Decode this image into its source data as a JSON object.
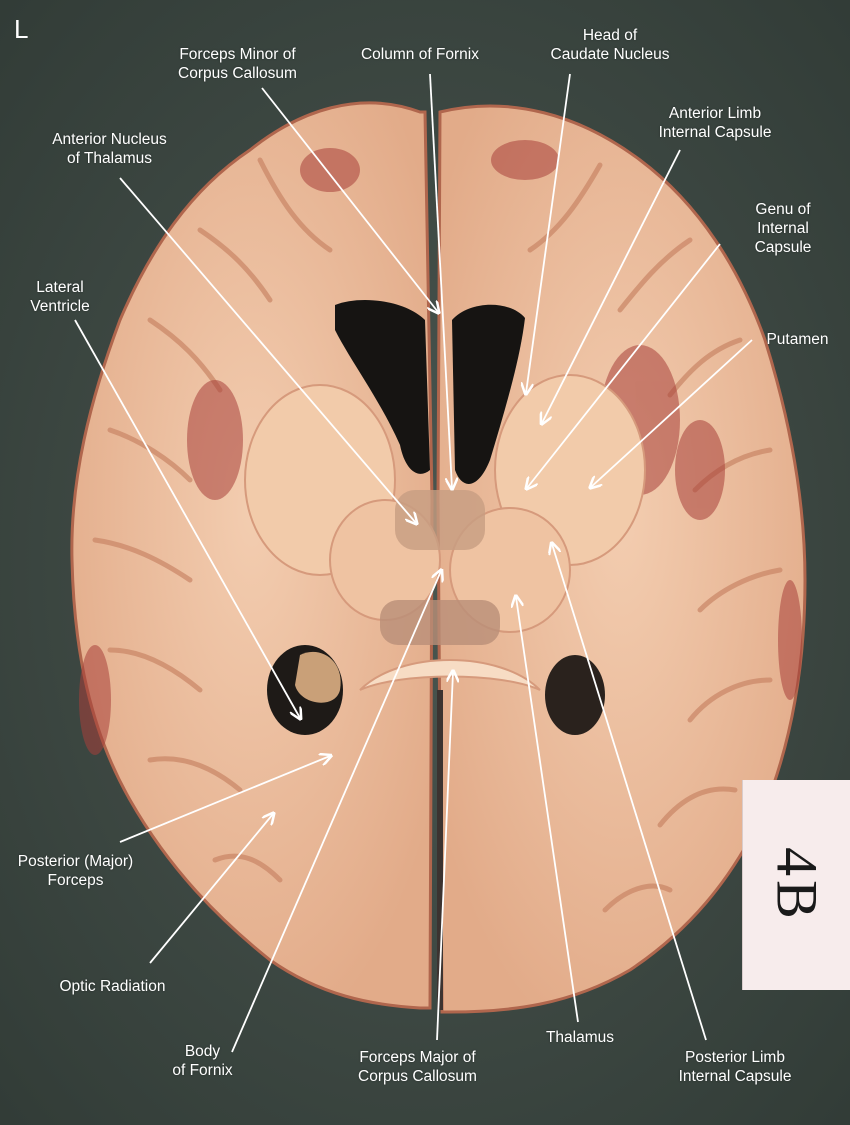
{
  "orientation_marker": "L",
  "specimen_card": "4B",
  "labels": {
    "forceps_minor": [
      "Forceps Minor of",
      "Corpus Callosum"
    ],
    "column_fornix": [
      "Column of Fornix"
    ],
    "head_caudate": [
      "Head of",
      "Caudate Nucleus"
    ],
    "anterior_nucleus": [
      "Anterior Nucleus",
      "of Thalamus"
    ],
    "anterior_limb": [
      "Anterior Limb",
      "Internal Capsule"
    ],
    "genu": [
      "Genu of",
      "Internal",
      "Capsule"
    ],
    "lateral_ventricle": [
      "Lateral",
      "Ventricle"
    ],
    "putamen": [
      "Putamen"
    ],
    "posterior_forceps": [
      "Posterior (Major)",
      "Forceps"
    ],
    "optic_radiation": [
      "Optic Radiation"
    ],
    "body_fornix": [
      "Body",
      "of  Fornix"
    ],
    "forceps_major": [
      "Forceps Major of",
      "Corpus Callosum"
    ],
    "thalamus": [
      "Thalamus"
    ],
    "posterior_limb": [
      "Posterior Limb",
      "Internal Capsule"
    ]
  },
  "colors": {
    "background": "#3e4a44",
    "tissue": "#e9b896",
    "white_matter": "#f2cbaa",
    "gray_matter_edge": "#d69a7c",
    "blood": "#a8403a",
    "ventricle": "#161412",
    "label_text": "#ffffff",
    "card": "#f7ecec"
  }
}
